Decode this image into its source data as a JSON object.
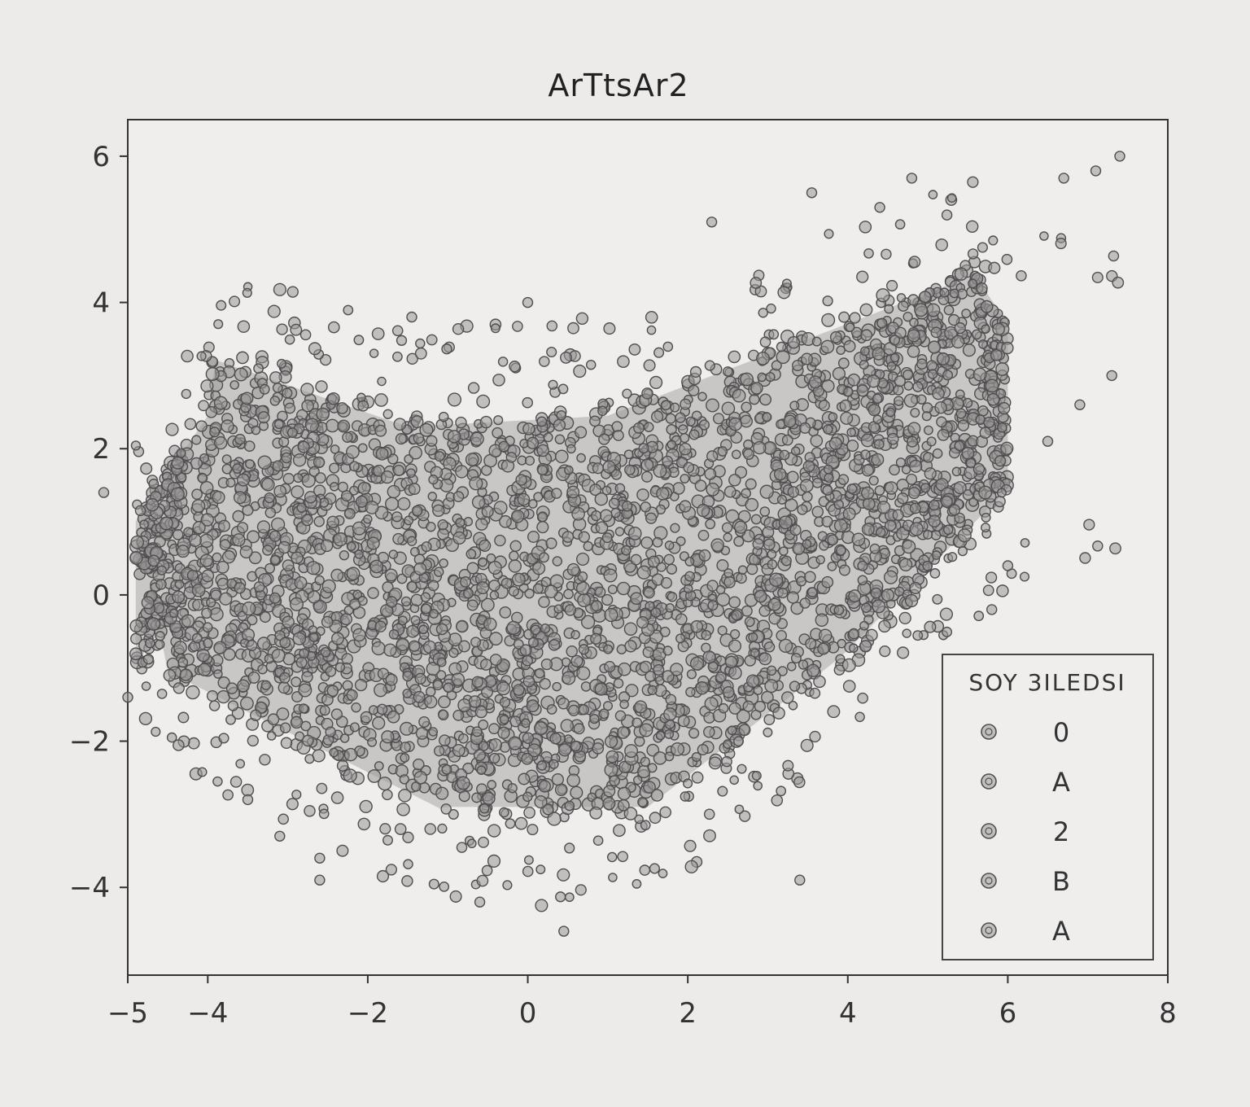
{
  "chart_data": {
    "type": "scatter",
    "title": "ArTtsAr2",
    "xlabel": "",
    "ylabel": "",
    "xlim": [
      -5,
      8
    ],
    "ylim": [
      -5.2,
      6.5
    ],
    "xticks": [
      -5,
      -4,
      -2,
      0,
      2,
      4,
      6,
      8
    ],
    "yticks": [
      -4,
      -2,
      0,
      2,
      4,
      6
    ],
    "xtick_labels": [
      "−5",
      "−4",
      "−2",
      "0",
      "2",
      "4",
      "6",
      "8"
    ],
    "ytick_labels": [
      "−4",
      "−2",
      "0",
      "2",
      "4",
      "6"
    ],
    "grid": false,
    "marker": "open circle",
    "approx_point_count": 3500,
    "density_shape": "U-shaped cloud: dense from x=-4 to x=6, left lobe peaking near y=3.5 at x=-4, right lobe rising to y=4.5 at x=5.5, bottom near y=-3 around x=0",
    "outliers": [
      {
        "x": -5.3,
        "y": 1.4
      },
      {
        "x": -5.0,
        "y": -1.4
      },
      {
        "x": -3.5,
        "y": -2.8
      },
      {
        "x": -3.1,
        "y": -3.3
      },
      {
        "x": -2.6,
        "y": -3.6
      },
      {
        "x": -2.6,
        "y": -3.9
      },
      {
        "x": -0.6,
        "y": -4.2
      },
      {
        "x": 0.45,
        "y": -4.6
      },
      {
        "x": 3.4,
        "y": -3.9
      },
      {
        "x": 0.0,
        "y": 4.0
      },
      {
        "x": -1.45,
        "y": 3.8
      },
      {
        "x": 2.3,
        "y": 5.1
      },
      {
        "x": 3.55,
        "y": 5.5
      },
      {
        "x": 4.4,
        "y": 5.3
      },
      {
        "x": 4.8,
        "y": 5.7
      },
      {
        "x": 6.7,
        "y": 5.7
      },
      {
        "x": 7.1,
        "y": 5.8
      },
      {
        "x": 7.4,
        "y": 6.0
      },
      {
        "x": 6.0,
        "y": 0.4
      },
      {
        "x": 5.8,
        "y": -0.2
      },
      {
        "x": 6.5,
        "y": 2.1
      },
      {
        "x": 6.9,
        "y": 2.6
      },
      {
        "x": 7.3,
        "y": 3.0
      }
    ],
    "legend": {
      "title": "SOY 3ILEDSI",
      "location": "lower-right",
      "entries": [
        "0",
        "A",
        "2",
        "B",
        "A"
      ]
    }
  },
  "colors": {
    "background": "#ecebea",
    "marker_stroke": "#4f4f4f",
    "marker_fill": "#9a9897",
    "frame": "#333333"
  }
}
